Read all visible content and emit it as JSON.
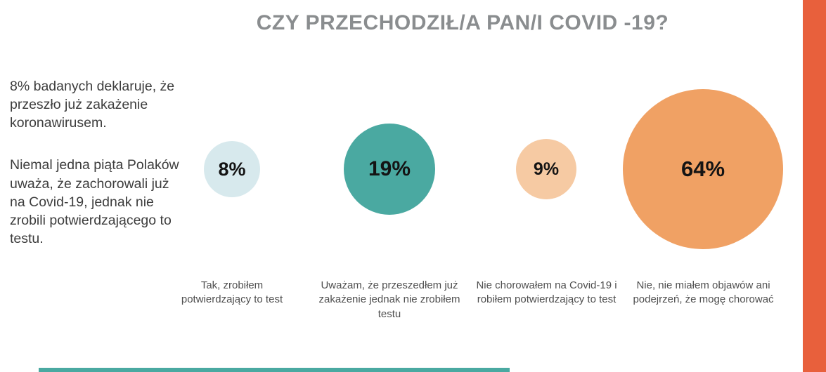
{
  "title": "CZY PRZECHODZIŁ/A PAN/I COVID -19?",
  "intro": {
    "paragraph1": "8% badanych deklaruje, że przeszło już zakażenie koronawirusem.",
    "paragraph2": "Niemal jedna piąta Polaków uważa, że zachorowali już na Covid-19, jednak nie zrobili potwierdzającego to testu."
  },
  "chart_data": {
    "type": "bubble",
    "title": "CZY PRZECHODZIŁ/A PAN/I COVID -19?",
    "categories": [
      "Tak, zrobiłem potwierdzający to test",
      "Uważam, że przeszedłem już zakażenie jednak nie zrobiłem testu",
      "Nie chorowałem na Covid-19 i robiłem potwierdzający to test",
      "Nie, nie miałem objawów ani podejrzeń, że mogę chorować"
    ],
    "values": [
      8,
      19,
      9,
      64
    ],
    "unit": "%",
    "value_labels": [
      "8%",
      "19%",
      "9%",
      "64%"
    ],
    "colors": [
      "#d7e9ed",
      "#4aa9a1",
      "#f6caa3",
      "#f0a164"
    ],
    "sizing": "area-proportional",
    "legend_position": "labels-below-bubbles"
  },
  "bubbles": [
    {
      "value": "8%",
      "category": "Tak, zrobiłem potwierdzający to test",
      "color": "#d7e9ed"
    },
    {
      "value": "19%",
      "category": "Uważam, że przeszedłem już zakażenie jednak nie zrobiłem testu",
      "color": "#4aa9a1"
    },
    {
      "value": "9%",
      "category": "Nie chorowałem na Covid-19 i robiłem potwierdzający to test",
      "color": "#f6caa3"
    },
    {
      "value": "64%",
      "category": "Nie, nie miałem objawów ani podejrzeń, że mogę chorować",
      "color": "#f0a164"
    }
  ],
  "accents": {
    "right_bar_color": "#e8603c",
    "bottom_bar_color": "#4aa9a1"
  }
}
